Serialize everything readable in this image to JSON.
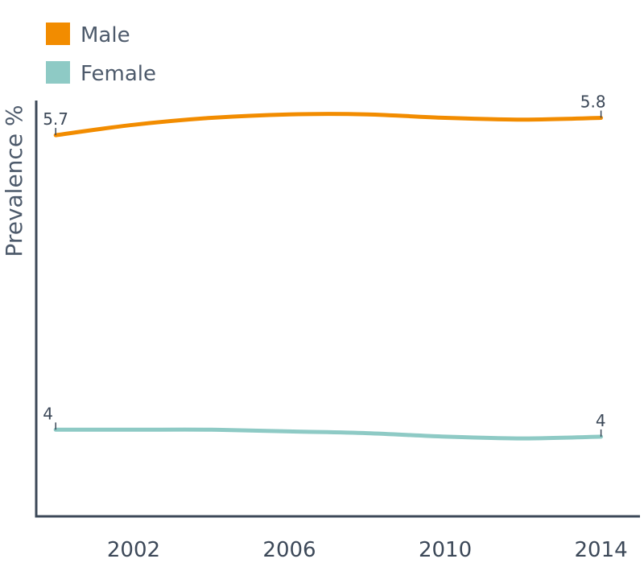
{
  "chart_data": {
    "type": "line",
    "title": "",
    "xlabel": "",
    "ylabel": "Prevalence %",
    "x": [
      2000,
      2002,
      2004,
      2006,
      2008,
      2010,
      2012,
      2014
    ],
    "x_ticks": [
      2002,
      2006,
      2010,
      2014
    ],
    "ylim": [
      3.5,
      5.9
    ],
    "grid": false,
    "legend_position": "top-left",
    "series": [
      {
        "name": "Male",
        "color": "#f28c00",
        "values": [
          5.7,
          5.76,
          5.8,
          5.82,
          5.82,
          5.8,
          5.79,
          5.8
        ],
        "end_labels": [
          "5.7",
          "5.8"
        ]
      },
      {
        "name": "Female",
        "color": "#8ecac5",
        "values": [
          4.0,
          4.0,
          4.0,
          3.99,
          3.98,
          3.96,
          3.95,
          3.96
        ],
        "end_labels": [
          "4",
          "4"
        ]
      }
    ],
    "axis_color": "#3c4858"
  }
}
